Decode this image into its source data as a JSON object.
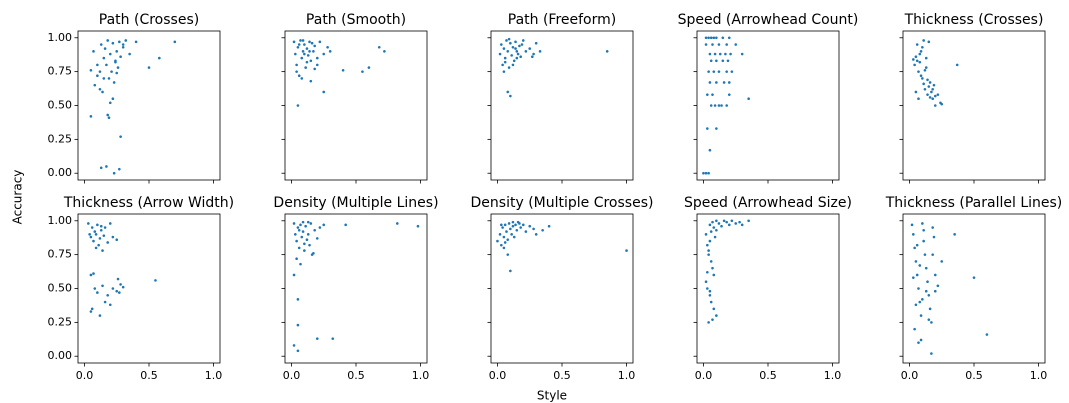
{
  "xlabel": "Style",
  "ylabel": "Accuracy",
  "xlim": [
    -0.05,
    1.05
  ],
  "ylim": [
    -0.05,
    1.05
  ],
  "xticks": [
    {
      "value": 0,
      "label": "0.0"
    },
    0.5,
    {
      "value": 1,
      "label": "1.0"
    }
  ],
  "yticks": [
    {
      "value": 0,
      "label": "0.00"
    },
    0.25,
    {
      "value": 0.5,
      "label": "0.50"
    },
    0.75,
    {
      "value": 1,
      "label": "1.00"
    }
  ],
  "chart_data": [
    {
      "type": "scatter",
      "title": "Path (Crosses)",
      "color": "#1f77b4",
      "x": [
        0.05,
        0.07,
        0.08,
        0.1,
        0.12,
        0.13,
        0.15,
        0.16,
        0.17,
        0.18,
        0.19,
        0.2,
        0.21,
        0.22,
        0.23,
        0.24,
        0.25,
        0.26,
        0.27,
        0.28,
        0.3,
        0.32,
        0.35,
        0.4,
        0.5,
        0.58,
        0.7,
        0.05,
        0.13,
        0.17,
        0.23,
        0.27,
        0.28,
        0.1,
        0.14,
        0.18,
        0.2,
        0.22,
        0.25,
        0.15,
        0.19,
        0.24,
        0.12,
        0.3
      ],
      "y": [
        0.76,
        0.9,
        0.65,
        0.72,
        0.62,
        0.95,
        0.85,
        0.92,
        0.8,
        0.98,
        0.7,
        0.88,
        0.75,
        0.96,
        0.67,
        0.82,
        0.9,
        0.78,
        0.97,
        0.86,
        0.93,
        0.98,
        0.88,
        0.97,
        0.78,
        0.85,
        0.97,
        0.42,
        0.04,
        0.05,
        0.0,
        0.03,
        0.27,
        0.8,
        0.6,
        0.43,
        0.52,
        0.55,
        0.74,
        0.7,
        0.41,
        0.83,
        0.75,
        0.95
      ]
    },
    {
      "type": "scatter",
      "title": "Path (Smooth)",
      "color": "#1f77b4",
      "x": [
        0.02,
        0.03,
        0.04,
        0.05,
        0.06,
        0.07,
        0.08,
        0.09,
        0.1,
        0.11,
        0.12,
        0.13,
        0.14,
        0.15,
        0.16,
        0.17,
        0.18,
        0.2,
        0.22,
        0.25,
        0.28,
        0.3,
        0.05,
        0.25,
        0.55,
        0.6,
        0.68,
        0.72,
        0.04,
        0.08,
        0.12,
        0.15,
        0.18,
        0.1,
        0.06,
        0.2,
        0.14,
        0.09,
        0.4
      ],
      "y": [
        0.97,
        0.88,
        0.8,
        0.93,
        0.72,
        0.98,
        0.85,
        0.9,
        0.95,
        0.78,
        0.92,
        0.87,
        0.97,
        0.83,
        0.96,
        0.9,
        0.94,
        0.85,
        0.97,
        0.88,
        0.93,
        0.9,
        0.5,
        0.6,
        0.75,
        0.78,
        0.93,
        0.9,
        0.75,
        0.7,
        0.82,
        0.68,
        0.77,
        0.88,
        0.95,
        0.8,
        0.9,
        0.98,
        0.76
      ]
    },
    {
      "type": "scatter",
      "title": "Path (Freeform)",
      "color": "#1f77b4",
      "x": [
        0.02,
        0.03,
        0.04,
        0.05,
        0.06,
        0.07,
        0.08,
        0.09,
        0.1,
        0.11,
        0.12,
        0.13,
        0.14,
        0.15,
        0.16,
        0.17,
        0.18,
        0.2,
        0.22,
        0.25,
        0.28,
        0.3,
        0.33,
        0.08,
        0.1,
        0.85,
        0.05,
        0.12,
        0.15,
        0.19,
        0.06,
        0.09,
        0.14,
        0.27
      ],
      "y": [
        0.88,
        0.95,
        0.8,
        0.92,
        0.85,
        0.98,
        0.9,
        0.78,
        0.96,
        0.87,
        0.93,
        0.83,
        0.97,
        0.9,
        0.88,
        0.94,
        0.86,
        0.98,
        0.9,
        0.92,
        0.88,
        0.96,
        0.9,
        0.6,
        0.57,
        0.9,
        0.75,
        0.8,
        0.85,
        0.95,
        0.82,
        0.99,
        0.92,
        0.86
      ]
    },
    {
      "type": "scatter",
      "title": "Speed (Arrowhead Count)",
      "color": "#1f77b4",
      "x": [
        0.02,
        0.04,
        0.06,
        0.08,
        0.1,
        0.15,
        0.2,
        0.02,
        0.07,
        0.12,
        0.18,
        0.25,
        0.05,
        0.09,
        0.13,
        0.17,
        0.21,
        0.3,
        0.06,
        0.1,
        0.15,
        0.19,
        0.04,
        0.08,
        0.12,
        0.18,
        0.22,
        0.05,
        0.1,
        0.16,
        0.2,
        0.03,
        0.07,
        0.14,
        0.18,
        0.35,
        0.06,
        0.09,
        0.1,
        0.03,
        0.05,
        0.0,
        0.02,
        0.04,
        0.12,
        0.2
      ],
      "y": [
        1.0,
        1.0,
        1.0,
        1.0,
        1.0,
        1.0,
        1.0,
        0.95,
        0.95,
        0.95,
        0.95,
        0.95,
        0.88,
        0.88,
        0.88,
        0.88,
        0.88,
        0.88,
        0.83,
        0.83,
        0.83,
        0.83,
        0.75,
        0.75,
        0.75,
        0.75,
        0.75,
        0.67,
        0.67,
        0.67,
        0.67,
        0.58,
        0.58,
        0.5,
        0.5,
        0.55,
        0.5,
        0.5,
        0.33,
        0.33,
        0.17,
        0.0,
        0.0,
        0.0,
        0.5,
        0.58
      ]
    },
    {
      "type": "scatter",
      "title": "Thickness (Crosses)",
      "color": "#1f77b4",
      "x": [
        0.03,
        0.04,
        0.05,
        0.06,
        0.07,
        0.08,
        0.09,
        0.1,
        0.11,
        0.12,
        0.13,
        0.14,
        0.15,
        0.16,
        0.17,
        0.18,
        0.19,
        0.2,
        0.22,
        0.24,
        0.25,
        0.05,
        0.07,
        0.09,
        0.11,
        0.13,
        0.15,
        0.37,
        0.06,
        0.08,
        0.1,
        0.12,
        0.14,
        0.16,
        0.18,
        0.2
      ],
      "y": [
        0.84,
        0.8,
        0.86,
        0.95,
        0.75,
        0.82,
        0.9,
        0.7,
        0.98,
        0.62,
        0.85,
        0.58,
        0.97,
        0.67,
        0.6,
        0.55,
        0.65,
        0.5,
        0.58,
        0.52,
        0.51,
        0.6,
        0.55,
        0.72,
        0.66,
        0.78,
        0.64,
        0.8,
        0.83,
        0.88,
        0.93,
        0.76,
        0.69,
        0.56,
        0.62,
        0.57
      ]
    },
    {
      "type": "scatter",
      "title": "Thickness (Arrow Width)",
      "color": "#1f77b4",
      "x": [
        0.03,
        0.05,
        0.06,
        0.07,
        0.08,
        0.09,
        0.1,
        0.11,
        0.12,
        0.13,
        0.14,
        0.15,
        0.16,
        0.18,
        0.2,
        0.22,
        0.25,
        0.05,
        0.06,
        0.08,
        0.1,
        0.12,
        0.14,
        0.16,
        0.18,
        0.2,
        0.22,
        0.25,
        0.26,
        0.28,
        0.3,
        0.05,
        0.07,
        0.55,
        0.04,
        0.09,
        0.13,
        0.27
      ],
      "y": [
        0.98,
        0.88,
        0.95,
        0.85,
        0.92,
        0.9,
        0.97,
        0.82,
        0.87,
        0.93,
        0.78,
        0.89,
        0.95,
        0.84,
        0.98,
        0.88,
        0.86,
        0.6,
        0.35,
        0.5,
        0.47,
        0.3,
        0.52,
        0.4,
        0.45,
        0.38,
        0.5,
        0.48,
        0.57,
        0.53,
        0.51,
        0.33,
        0.61,
        0.56,
        0.9,
        0.8,
        0.96,
        0.47
      ]
    },
    {
      "type": "scatter",
      "title": "Density (Multiple Lines)",
      "color": "#1f77b4",
      "x": [
        0.02,
        0.03,
        0.04,
        0.05,
        0.06,
        0.07,
        0.08,
        0.09,
        0.1,
        0.11,
        0.12,
        0.13,
        0.14,
        0.15,
        0.16,
        0.18,
        0.2,
        0.22,
        0.25,
        0.02,
        0.05,
        0.05,
        0.02,
        0.05,
        0.2,
        0.32,
        0.42,
        0.82,
        0.98,
        0.04,
        0.07,
        0.1,
        0.13,
        0.17,
        0.06,
        0.09
      ],
      "y": [
        0.98,
        0.9,
        0.85,
        0.95,
        0.8,
        0.97,
        0.88,
        0.92,
        0.78,
        0.96,
        0.86,
        0.9,
        0.82,
        0.98,
        0.75,
        0.93,
        0.87,
        0.95,
        0.97,
        0.6,
        0.42,
        0.23,
        0.08,
        0.04,
        0.13,
        0.13,
        0.97,
        0.98,
        0.96,
        0.72,
        0.68,
        0.83,
        0.99,
        0.76,
        0.93,
        0.99
      ]
    },
    {
      "type": "scatter",
      "title": "Density (Multiple Crosses)",
      "color": "#1f77b4",
      "x": [
        0.0,
        0.02,
        0.03,
        0.04,
        0.05,
        0.06,
        0.07,
        0.08,
        0.09,
        0.1,
        0.11,
        0.12,
        0.13,
        0.14,
        0.15,
        0.16,
        0.18,
        0.2,
        0.22,
        0.25,
        0.28,
        0.3,
        0.35,
        0.4,
        0.1,
        1.0,
        0.05,
        0.08,
        0.12,
        0.17,
        0.03,
        0.06
      ],
      "y": [
        0.85,
        0.9,
        0.82,
        0.95,
        0.88,
        0.97,
        0.92,
        0.86,
        0.98,
        0.94,
        0.9,
        0.96,
        0.88,
        0.97,
        0.93,
        0.99,
        0.95,
        0.97,
        0.92,
        0.96,
        0.94,
        0.9,
        0.93,
        0.96,
        0.63,
        0.78,
        0.8,
        0.75,
        0.99,
        0.98,
        0.97,
        0.84
      ]
    },
    {
      "type": "scatter",
      "title": "Speed (Arrowhead Size)",
      "color": "#1f77b4",
      "x": [
        0.05,
        0.07,
        0.08,
        0.1,
        0.12,
        0.14,
        0.16,
        0.18,
        0.2,
        0.22,
        0.25,
        0.28,
        0.3,
        0.35,
        0.02,
        0.03,
        0.04,
        0.05,
        0.06,
        0.07,
        0.08,
        0.02,
        0.03,
        0.05,
        0.06,
        0.08,
        0.1,
        0.04,
        0.07,
        0.03,
        0.05,
        0.09,
        0.1,
        0.06,
        0.04
      ],
      "y": [
        0.97,
        0.99,
        0.95,
        1.0,
        0.98,
        0.96,
        1.0,
        0.99,
        0.97,
        1.0,
        0.98,
        0.99,
        0.97,
        1.0,
        0.9,
        0.82,
        0.75,
        0.85,
        0.7,
        0.65,
        0.6,
        0.55,
        0.5,
        0.45,
        0.4,
        0.35,
        0.3,
        0.25,
        0.27,
        0.62,
        0.48,
        0.88,
        0.93,
        0.92,
        0.78
      ]
    },
    {
      "type": "scatter",
      "title": "Thickness (Parallel Lines)",
      "color": "#1f77b4",
      "x": [
        0.02,
        0.03,
        0.04,
        0.05,
        0.06,
        0.07,
        0.08,
        0.09,
        0.1,
        0.11,
        0.12,
        0.13,
        0.14,
        0.15,
        0.16,
        0.17,
        0.18,
        0.19,
        0.2,
        0.22,
        0.25,
        0.03,
        0.05,
        0.07,
        0.09,
        0.11,
        0.13,
        0.15,
        0.17,
        0.5,
        0.6,
        0.35,
        0.06,
        0.08,
        0.1,
        0.18,
        0.2,
        0.04
      ],
      "y": [
        0.97,
        0.9,
        0.8,
        0.7,
        0.6,
        0.5,
        0.4,
        0.3,
        0.98,
        0.85,
        0.75,
        0.65,
        0.55,
        0.45,
        0.35,
        0.25,
        0.95,
        0.88,
        0.6,
        0.52,
        0.7,
        0.58,
        0.38,
        0.1,
        0.12,
        0.93,
        0.48,
        0.27,
        0.02,
        0.58,
        0.16,
        0.9,
        0.82,
        0.67,
        0.42,
        0.75,
        0.48,
        0.2
      ]
    }
  ]
}
